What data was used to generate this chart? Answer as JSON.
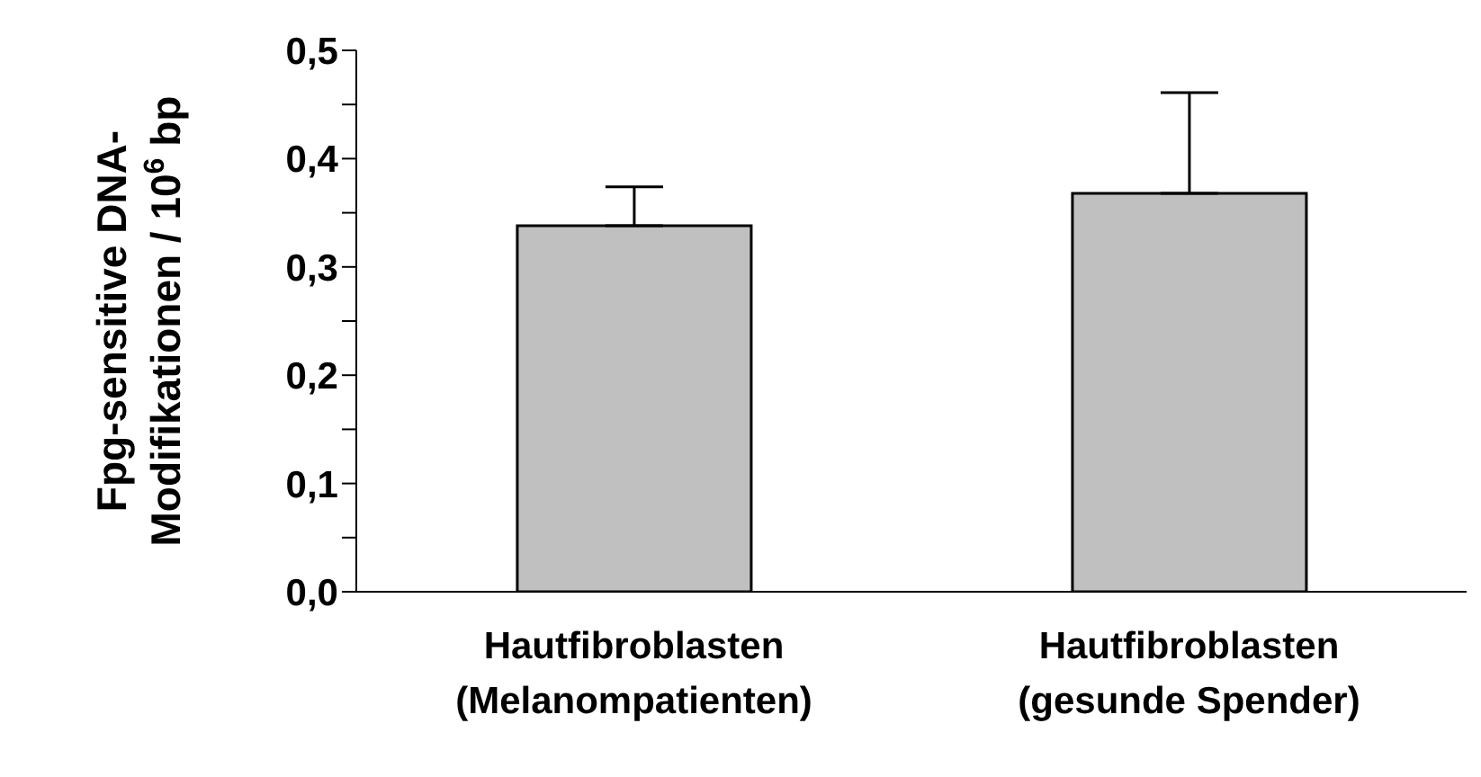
{
  "chart_data": {
    "type": "bar",
    "ylabel": "Fpg-sensitive DNA-\nModifikationen / 10$^{6}$ bp",
    "categories": [
      "Hautfibroblasten\n(Melanompatienten)",
      "Hautfibroblasten\n(gesunde Spender)"
    ],
    "values": [
      0.338,
      0.368
    ],
    "color": "#c0c0c0",
    "errors": [
      [
        0.338,
        0.374
      ],
      [
        0.368,
        0.461
      ]
    ],
    "ylim": [
      0,
      0.5
    ],
    "yticks": [
      {
        "value": 0,
        "label": "0,0"
      },
      {
        "value": 0.05,
        "label": null
      },
      {
        "value": 0.1,
        "label": "0,1"
      },
      {
        "value": 0.15,
        "label": null
      },
      {
        "value": 0.2,
        "label": "0,2"
      },
      {
        "value": 0.25,
        "label": null
      },
      {
        "value": 0.3,
        "label": "0,3"
      },
      {
        "value": 0.35,
        "label": null
      },
      {
        "value": 0.4,
        "label": "0,4"
      },
      {
        "value": 0.45,
        "label": null
      },
      {
        "value": 0.5,
        "label": "0,5"
      }
    ],
    "grid": false,
    "legend": false
  }
}
